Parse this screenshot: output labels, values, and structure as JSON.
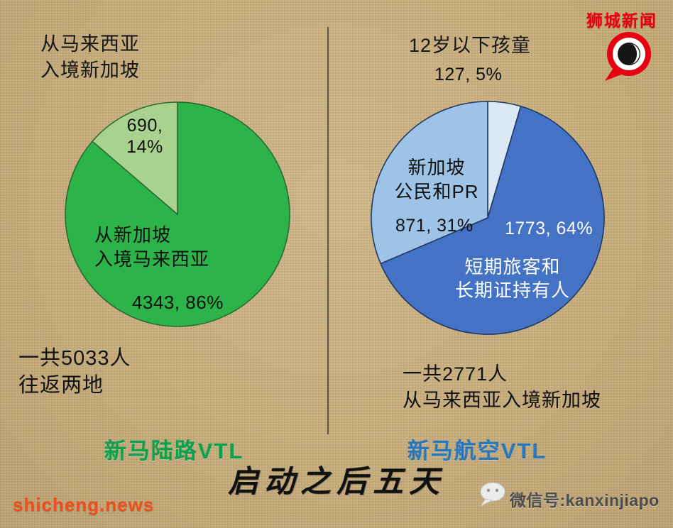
{
  "brand": {
    "name": "狮城新闻",
    "site": "shicheng.news",
    "wechat": "微信号:kanxinjiapo"
  },
  "footer_title": "启动之后五天",
  "left": {
    "header_line1": "从马来西亚",
    "header_line2": "入境新加坡",
    "slice_small_line1": "690,",
    "slice_small_line2": "14%",
    "slice_big_line1": "从新加坡",
    "slice_big_line2": "入境马来西亚",
    "slice_big_value": "4343, 86%",
    "total_line1": "一共5033人",
    "total_line2": "往返两地",
    "caption": "新马陆路VTL"
  },
  "right": {
    "header": "12岁以下孩童",
    "header_value": "127, 5%",
    "citizens_line1": "新加坡",
    "citizens_line2": "公民和PR",
    "citizens_value": "871, 31%",
    "shortterm_value": "1773, 64%",
    "shortterm_line1": "短期旅客和",
    "shortterm_line2": "长期证持有人",
    "total_line1": "一共2771人",
    "total_line2": "从马来西亚入境新加坡",
    "caption": "新马航空VTL"
  },
  "chart_data": [
    {
      "type": "pie",
      "title": "新马陆路VTL",
      "note": "一共5033人 往返两地",
      "total": 5033,
      "start_angle_deg": 0,
      "stroke": "#2d6a33",
      "legend_position": "inside",
      "slices": [
        {
          "label": "从新加坡入境马来西亚",
          "value": 4343,
          "pct": "86%",
          "color": "#2cb34a"
        },
        {
          "label": "从马来西亚入境新加坡",
          "value": 690,
          "pct": "14%",
          "color": "#aad28f"
        }
      ]
    },
    {
      "type": "pie",
      "title": "新马航空VTL",
      "note": "一共2771人 从马来西亚入境新加坡",
      "total": 2771,
      "start_angle_deg": 0,
      "stroke": "#203864",
      "legend_position": "inside",
      "slices": [
        {
          "label": "12岁以下孩童",
          "value": 127,
          "pct": "5%",
          "color": "#dce9f5"
        },
        {
          "label": "短期旅客和长期证持有人",
          "value": 1773,
          "pct": "64%",
          "color": "#4472c4"
        },
        {
          "label": "新加坡公民和PR",
          "value": 871,
          "pct": "31%",
          "color": "#9dc3e6"
        }
      ]
    }
  ]
}
